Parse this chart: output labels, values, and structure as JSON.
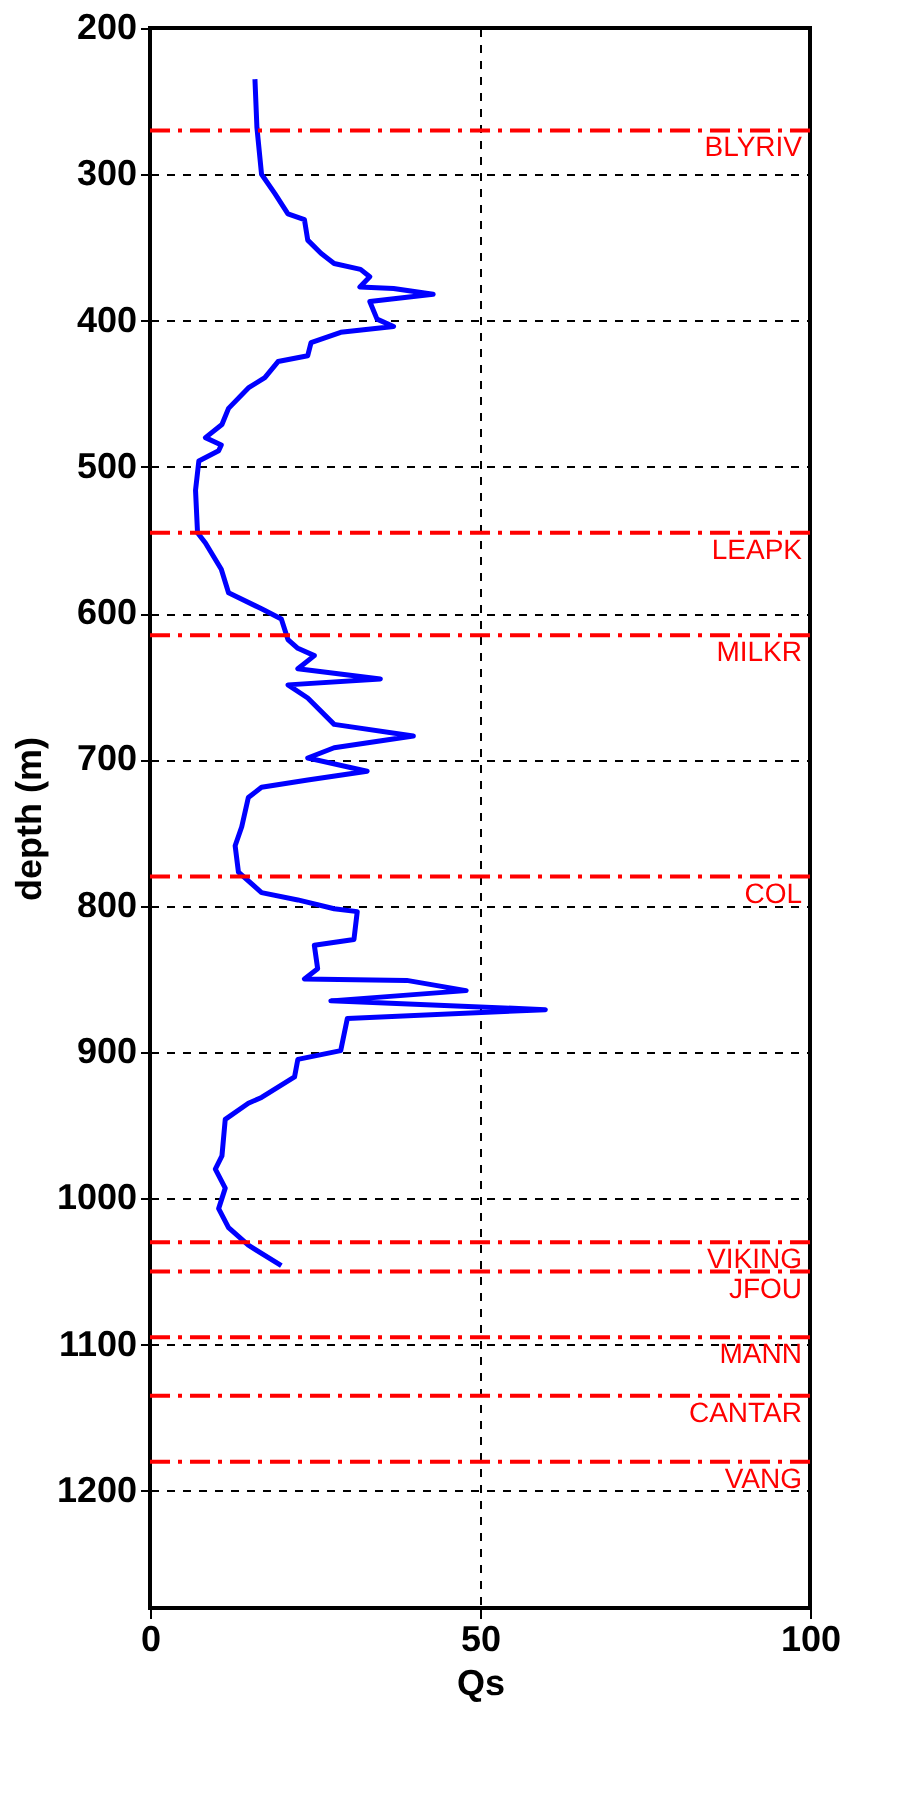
{
  "chart_data": {
    "type": "line",
    "xlabel": "Qs",
    "ylabel": "depth (m)",
    "xlim": [
      0,
      100
    ],
    "xticks": [
      0,
      50,
      100
    ],
    "ylim": [
      1280,
      200
    ],
    "yticks": [
      200,
      300,
      400,
      500,
      600,
      700,
      800,
      900,
      1000,
      1100,
      1200
    ],
    "grid": true,
    "marker": "none",
    "line_style": "solid",
    "series": [
      {
        "color": "#0000ff",
        "x": [
          15.9,
          16.2,
          16.9,
          18.9,
          20.9,
          23.4,
          23.9,
          25.9,
          27.9,
          31.9,
          33.3,
          31.8,
          36.9,
          42.9,
          33.3,
          34.4,
          36.9,
          28.9,
          24.4,
          23.9,
          19.4,
          17.4,
          14.9,
          11.9,
          10.9,
          8.4,
          10.8,
          10.4,
          7.4,
          6.9,
          7.2,
          8.4,
          10.8,
          11.9,
          16.9,
          19.9,
          20.9,
          22.4,
          24.9,
          22.4,
          34.9,
          20.9,
          23.9,
          27.9,
          39.9,
          27.9,
          23.9,
          32.9,
          23.9,
          16.9,
          14.9,
          13.9,
          12.9,
          13.4,
          16.9,
          22.4,
          27.9,
          31.4,
          30.9,
          24.9,
          25.4,
          23.4,
          38.9,
          47.9,
          27.4,
          59.9,
          29.9,
          28.9,
          22.4,
          21.9,
          16.9,
          14.9,
          11.4,
          10.9,
          9.9,
          11.4,
          10.4,
          11.9,
          14.9,
          19.9
        ],
        "values": [
          235,
          268,
          300,
          313,
          327,
          331,
          345,
          354,
          361,
          365,
          370,
          377,
          378,
          382,
          387,
          399,
          404,
          408,
          415,
          424,
          428,
          439,
          446,
          460,
          471,
          480,
          485,
          489,
          496,
          516,
          545,
          552,
          570,
          586,
          597,
          604,
          618,
          624,
          629,
          638,
          645,
          649,
          658,
          676,
          684,
          692,
          699,
          708,
          714,
          719,
          726,
          746,
          759,
          777,
          791,
          796,
          802,
          804,
          823,
          827,
          843,
          850,
          851,
          858,
          865,
          871,
          877,
          899,
          905,
          917,
          931,
          935,
          946,
          971,
          980,
          993,
          1007,
          1020,
          1032,
          1046
        ]
      }
    ],
    "ref_lines": [
      {
        "axis": "y",
        "value": 270,
        "color": "#ff0000",
        "line_style": "dashed",
        "label": "BLYRIV"
      },
      {
        "axis": "y",
        "value": 545,
        "color": "#ff0000",
        "line_style": "dashed",
        "label": "LEAPK"
      },
      {
        "axis": "y",
        "value": 615,
        "color": "#ff0000",
        "line_style": "dashed",
        "label": "MILKR"
      },
      {
        "axis": "y",
        "value": 780,
        "color": "#ff0000",
        "line_style": "dashed",
        "label": "COL"
      },
      {
        "axis": "y",
        "value": 1030,
        "color": "#ff0000",
        "line_style": "dashed",
        "label": "VIKING"
      },
      {
        "axis": "y",
        "value": 1050,
        "color": "#ff0000",
        "line_style": "dashed",
        "label": "JFOU"
      },
      {
        "axis": "y",
        "value": 1095,
        "color": "#ff0000",
        "line_style": "dashed",
        "label": "MANN"
      },
      {
        "axis": "y",
        "value": 1135,
        "color": "#ff0000",
        "line_style": "dashed",
        "label": "CANTAR"
      },
      {
        "axis": "y",
        "value": 1180,
        "color": "#ff0000",
        "line_style": "dashed",
        "label": "VANG"
      }
    ]
  }
}
